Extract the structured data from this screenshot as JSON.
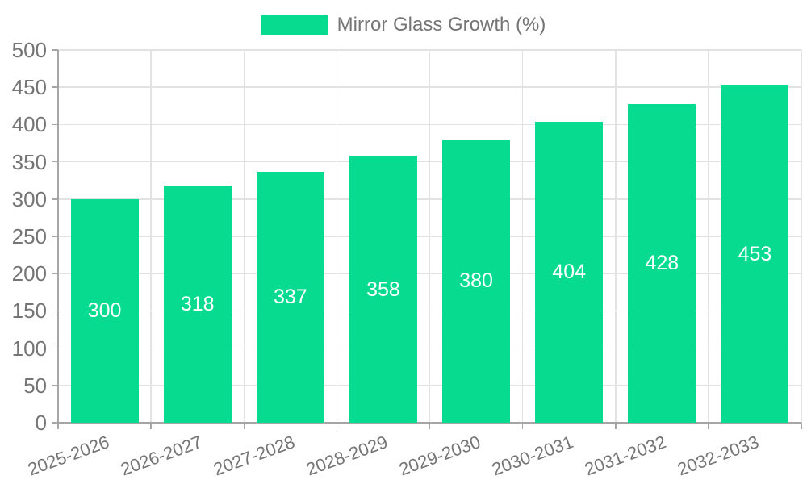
{
  "chart_data": {
    "type": "bar",
    "title": "Mirror Glass Growth (%)",
    "categories": [
      "2025-2026",
      "2026-2027",
      "2027-2028",
      "2028-2029",
      "2029-2030",
      "2030-2031",
      "2031-2032",
      "2032-2033"
    ],
    "values": [
      300,
      318,
      337,
      358,
      380,
      404,
      428,
      453
    ],
    "series": [
      {
        "name": "Mirror Glass Growth (%)",
        "values": [
          300,
          318,
          337,
          358,
          380,
          404,
          428,
          453
        ]
      }
    ],
    "xlabel": "",
    "ylabel": "",
    "ylim": [
      0,
      500
    ],
    "ytick_step": 50,
    "yticks": [
      0,
      50,
      100,
      150,
      200,
      250,
      300,
      350,
      400,
      450,
      500
    ],
    "grid": true,
    "legend_position": "top-center",
    "bar_color": "#07db90",
    "grid_color": "#e2e2e2",
    "axis_color": "#a6a6a6",
    "axis_text_color": "#757575",
    "value_label_color": "#ffffff"
  },
  "legend": {
    "label": "Mirror Glass Growth (%)"
  }
}
